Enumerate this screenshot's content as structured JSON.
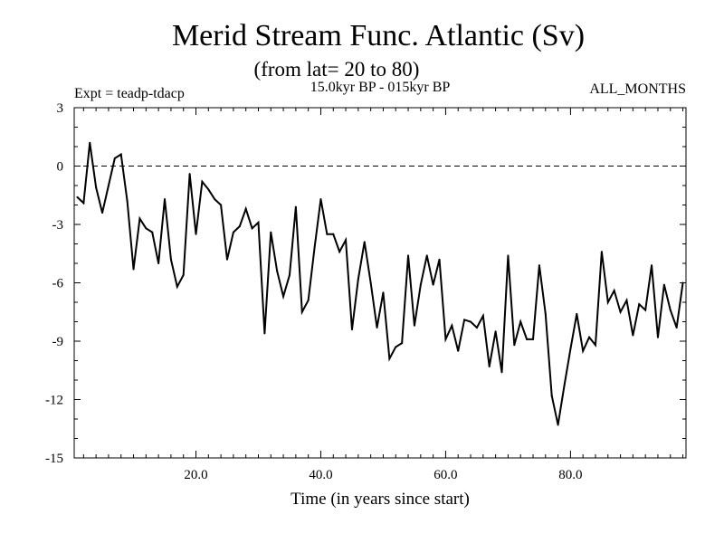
{
  "chart_data": {
    "type": "line",
    "title": "Merid Stream Func. Atlantic (Sv)",
    "subtitle": "(from lat= 20 to 80)",
    "experiment_label": "Expt = teadp-tdacp",
    "period_label": "15.0kyr BP - 015kyr BP",
    "months_label": "ALL_MONTHS",
    "xlabel": "Time (in years since start)",
    "ylabel": "",
    "xlim": [
      0.5,
      98.5
    ],
    "ylim": [
      -15,
      3
    ],
    "xticks": [
      20,
      40,
      60,
      80
    ],
    "xtick_labels": [
      "20.0",
      "40.0",
      "60.0",
      "80.0"
    ],
    "yticks": [
      3,
      0,
      -3,
      -6,
      -9,
      -12,
      -15
    ],
    "ytick_labels": [
      "3",
      "0",
      "-3",
      "-6",
      "-9",
      "-12",
      "-15"
    ],
    "reference_line": 0,
    "series": [
      {
        "name": "Merid Stream Func. Atlantic",
        "x": [
          1,
          2,
          3,
          4,
          5,
          6,
          7,
          8,
          9,
          10,
          11,
          12,
          13,
          14,
          15,
          16,
          17,
          18,
          19,
          20,
          21,
          22,
          23,
          24,
          25,
          26,
          27,
          28,
          29,
          30,
          31,
          32,
          33,
          34,
          35,
          36,
          37,
          38,
          39,
          40,
          41,
          42,
          43,
          44,
          45,
          46,
          47,
          48,
          49,
          50,
          51,
          52,
          53,
          54,
          55,
          56,
          57,
          58,
          59,
          60,
          61,
          62,
          63,
          64,
          65,
          66,
          67,
          68,
          69,
          70,
          71,
          72,
          73,
          74,
          75,
          76,
          77,
          78,
          79,
          80,
          81,
          82,
          83,
          84,
          85,
          86,
          87,
          88,
          89,
          90,
          91,
          92,
          93,
          94,
          95,
          96,
          97,
          98
        ],
        "values": [
          -1.6,
          -1.9,
          1.2,
          -1.1,
          -2.4,
          -1.0,
          0.4,
          0.6,
          -1.8,
          -5.3,
          -2.7,
          -3.2,
          -3.4,
          -5.0,
          -1.7,
          -4.8,
          -6.2,
          -5.6,
          -0.4,
          -3.5,
          -0.8,
          -1.2,
          -1.7,
          -2.0,
          -4.8,
          -3.4,
          -3.1,
          -2.2,
          -3.2,
          -2.9,
          -8.6,
          -3.4,
          -5.4,
          -6.7,
          -5.6,
          -2.1,
          -7.5,
          -6.9,
          -4.2,
          -1.7,
          -3.5,
          -3.5,
          -4.4,
          -3.8,
          -8.4,
          -5.8,
          -3.9,
          -6.0,
          -8.3,
          -6.5,
          -9.9,
          -9.3,
          -9.1,
          -4.6,
          -8.2,
          -6.1,
          -4.6,
          -6.1,
          -4.8,
          -8.9,
          -8.2,
          -9.5,
          -7.9,
          -8.0,
          -8.3,
          -7.7,
          -10.3,
          -8.5,
          -10.6,
          -4.6,
          -9.2,
          -8.0,
          -8.9,
          -8.9,
          -5.1,
          -7.6,
          -11.8,
          -13.3,
          -11.3,
          -9.4,
          -7.6,
          -9.5,
          -8.8,
          -9.2,
          -4.4,
          -7.0,
          -6.4,
          -7.5,
          -6.9,
          -8.7,
          -7.1,
          -7.4,
          -5.1,
          -8.8,
          -6.1,
          -7.4,
          -8.3,
          -6.0
        ]
      }
    ]
  }
}
